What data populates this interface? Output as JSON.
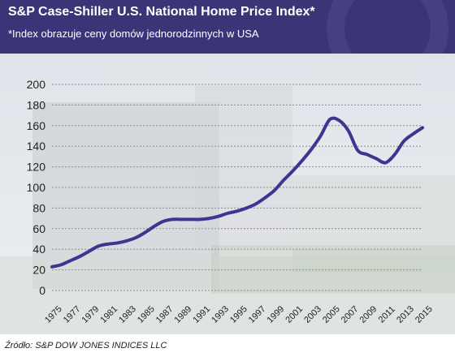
{
  "header": {
    "title": "S&P Case-Shiller U.S. National Home Price Index*",
    "subtitle": "*Index obrazuje ceny domów jednorodzinnych w USA"
  },
  "source": "Źródło: S&P DOW JONES INDICES LLC",
  "colors": {
    "header_bg": "#3a3577",
    "line": "#3d3590",
    "grid": "#8a8a8a",
    "text": "#222222"
  },
  "chart_data": {
    "type": "line",
    "title": "S&P Case-Shiller U.S. National Home Price Index*",
    "subtitle": "*Index obrazuje ceny domów jednorodzinnych w USA",
    "xlabel": "",
    "ylabel": "",
    "xlim": [
      1975,
      2015
    ],
    "ylim": [
      0,
      200
    ],
    "grid": "horizontal dashed",
    "legend": "none",
    "x_ticks": [
      "1975",
      "1977",
      "1979",
      "1981",
      "1983",
      "1985",
      "1987",
      "1989",
      "1991",
      "1993",
      "1995",
      "1997",
      "1999",
      "2001",
      "2003",
      "2005",
      "2007",
      "2009",
      "2011",
      "2013",
      "2015"
    ],
    "y_ticks": [
      "0",
      "20",
      "40",
      "60",
      "80",
      "100",
      "120",
      "140",
      "160",
      "180",
      "200"
    ],
    "series": [
      {
        "x": [
          1975,
          1976,
          1977,
          1978,
          1979,
          1980,
          1981,
          1982,
          1983,
          1984,
          1985,
          1986,
          1987,
          1988,
          1989,
          1990,
          1991,
          1992,
          1993,
          1994,
          1995,
          1996,
          1997,
          1998,
          1999,
          2000,
          2001,
          2002,
          2003,
          2004,
          2005,
          2006,
          2007,
          2008,
          2009,
          2010,
          2011,
          2012,
          2013,
          2014,
          2015
        ],
        "y": [
          23,
          25,
          29,
          33,
          38,
          43,
          45,
          46,
          48,
          51,
          56,
          62,
          67,
          69,
          69,
          69,
          69,
          70,
          72,
          75,
          77,
          80,
          84,
          90,
          97,
          107,
          116,
          126,
          137,
          150,
          166,
          165,
          155,
          136,
          132,
          128,
          124,
          132,
          145,
          152,
          158
        ]
      }
    ]
  }
}
